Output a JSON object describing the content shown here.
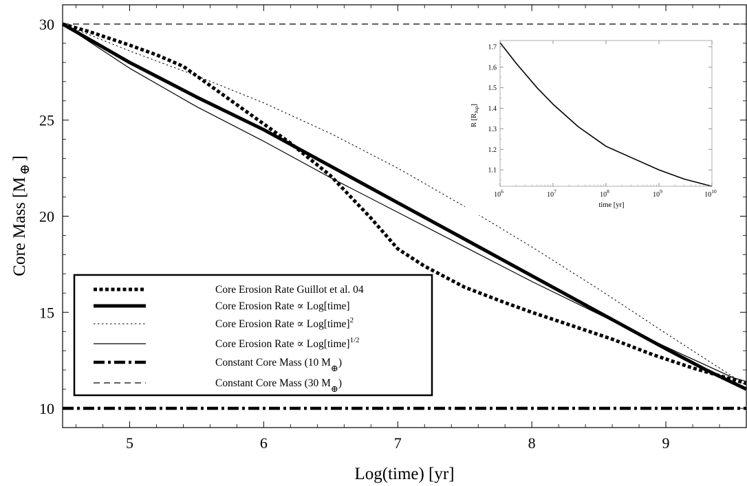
{
  "chart_data": [
    {
      "type": "line",
      "xlabel": "Log(time) [yr]",
      "ylabel": "Core Mass [M",
      "ylabel_symbol": "⊕",
      "ylabel_close": "]",
      "xlim": [
        4.5,
        9.6
      ],
      "ylim": [
        9.0,
        31.0
      ],
      "xticks": [
        "5",
        "6",
        "7",
        "8",
        "9"
      ],
      "yticks": [
        "10",
        "15",
        "20",
        "25",
        "30"
      ],
      "grid": false,
      "legend_position": "lower-left",
      "series": [
        {
          "name": "Core Erosion Rate Guillot et al. 04",
          "style": "thick-dotted",
          "x": [
            4.5,
            4.7,
            5.0,
            5.2,
            5.4,
            5.6,
            5.8,
            6.0,
            6.2,
            6.5,
            6.8,
            7.0,
            7.2,
            7.5,
            7.8,
            8.0,
            8.3,
            8.6,
            8.9,
            9.2,
            9.6
          ],
          "y": [
            30.0,
            29.6,
            28.9,
            28.4,
            27.8,
            26.8,
            25.8,
            24.8,
            23.8,
            22.1,
            19.9,
            18.3,
            17.4,
            16.3,
            15.5,
            15.0,
            14.3,
            13.6,
            12.8,
            12.1,
            11.3
          ]
        },
        {
          "name": "Core Erosion Rate ∝ Log[time]",
          "style": "thick-solid",
          "x": [
            4.5,
            5.0,
            5.5,
            6.0,
            6.5,
            7.0,
            7.5,
            8.0,
            8.5,
            9.0,
            9.3,
            9.6
          ],
          "y": [
            30.0,
            28.0,
            26.2,
            24.5,
            22.6,
            20.7,
            18.8,
            16.9,
            15.0,
            13.1,
            12.0,
            11.0
          ]
        },
        {
          "name": "Core Erosion Rate ∝ Log[time]",
          "sup": "2",
          "style": "thin-dotted",
          "x": [
            4.5,
            5.0,
            5.5,
            6.0,
            6.5,
            7.0,
            7.5,
            8.0,
            8.5,
            9.0,
            9.6
          ],
          "y": [
            30.0,
            28.6,
            27.3,
            25.9,
            24.3,
            22.5,
            20.5,
            18.4,
            16.2,
            13.9,
            11.2
          ]
        },
        {
          "name": "Core Erosion Rate ∝ Log[time]",
          "sup": "1/2",
          "style": "thin-solid",
          "x": [
            4.5,
            5.0,
            5.5,
            6.0,
            6.5,
            7.0,
            7.5,
            8.0,
            8.5,
            9.0,
            9.5,
            9.6
          ],
          "y": [
            30.0,
            27.7,
            25.7,
            23.9,
            22.0,
            20.2,
            18.4,
            16.6,
            14.9,
            13.2,
            11.6,
            11.4
          ]
        },
        {
          "name": "Constant Core Mass (10 M",
          "sub": "⊕",
          "close": ")",
          "style": "thick-dashdot",
          "x": [
            4.5,
            9.6
          ],
          "y": [
            10.0,
            10.0
          ]
        },
        {
          "name": "Constant Core Mass (30 M",
          "sub": "⊕",
          "close": ")",
          "style": "thin-dashed",
          "x": [
            4.5,
            9.6
          ],
          "y": [
            30.0,
            30.0
          ]
        }
      ]
    },
    {
      "type": "line",
      "position": "inset top-right",
      "xlabel": "time [yr]",
      "ylabel": "R [R",
      "ylabel_sub": "Jup",
      "ylabel_close": "]",
      "xscale": "log",
      "xlim": [
        1000000,
        10000000000
      ],
      "ylim": [
        1.02,
        1.73
      ],
      "xticks": [
        {
          "base": "10",
          "exp": "6"
        },
        {
          "base": "10",
          "exp": "7"
        },
        {
          "base": "10",
          "exp": "8"
        },
        {
          "base": "10",
          "exp": "9"
        },
        {
          "base": "10",
          "exp": "10"
        }
      ],
      "yticks": [
        "1.1",
        "1.2",
        "1.3",
        "1.4",
        "1.5",
        "1.6",
        "1.7"
      ],
      "series": [
        {
          "x": [
            1000000,
            2000000,
            5000000,
            10000000,
            30000000,
            100000000,
            300000000,
            1000000000,
            3000000000,
            10000000000
          ],
          "y": [
            1.72,
            1.62,
            1.5,
            1.42,
            1.31,
            1.215,
            1.16,
            1.1,
            1.055,
            1.02
          ]
        }
      ]
    }
  ]
}
